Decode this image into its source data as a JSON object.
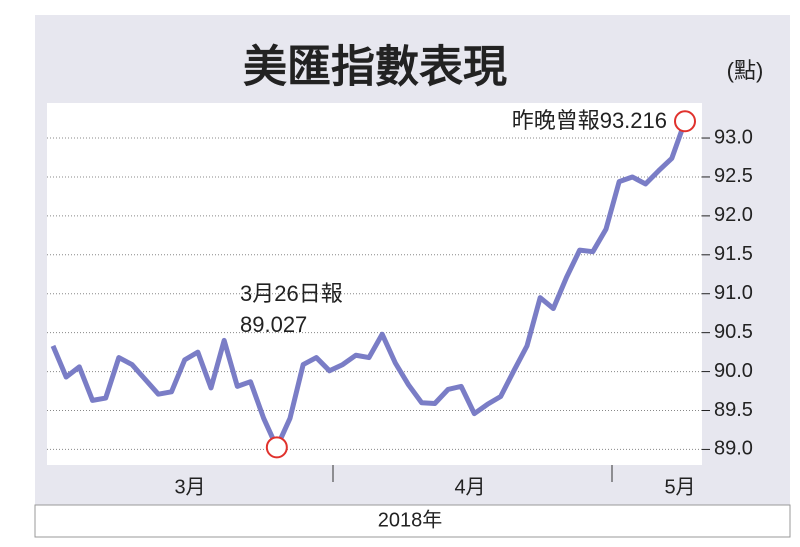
{
  "chart_data": {
    "type": "line",
    "title": "美匯指數表現",
    "unit_label": "(點)",
    "x_label": "2018年",
    "x_group_labels": [
      "3月",
      "4月",
      "5月"
    ],
    "categories": [
      null,
      null,
      null,
      null,
      null,
      null,
      null,
      null,
      null,
      null,
      null,
      null,
      null,
      null,
      null,
      null,
      null,
      null,
      null,
      null,
      null,
      null,
      null,
      null,
      null,
      null,
      null,
      null,
      null,
      null,
      null,
      null,
      null,
      null,
      null,
      null,
      null,
      null,
      null,
      null,
      null,
      null,
      null,
      null,
      null,
      null,
      null,
      null,
      null
    ],
    "series": [
      {
        "name": "美匯指數",
        "color": "#7a7dc6",
        "values": [
          90.33,
          89.93,
          90.06,
          89.63,
          89.66,
          90.18,
          90.09,
          89.9,
          89.71,
          89.74,
          90.15,
          90.25,
          89.79,
          90.4,
          89.81,
          89.87,
          89.4,
          89.027,
          89.4,
          90.09,
          90.18,
          90.01,
          90.09,
          90.21,
          90.18,
          90.48,
          90.11,
          89.83,
          89.6,
          89.59,
          89.77,
          89.81,
          89.46,
          89.58,
          89.68,
          90.01,
          90.33,
          90.95,
          90.81,
          91.21,
          91.56,
          91.54,
          91.83,
          92.44,
          92.5,
          92.41,
          92.58,
          92.74,
          93.216
        ]
      }
    ],
    "annotations": [
      {
        "index": 17,
        "text": "3月26日報"
      },
      {
        "index": 48,
        "text": "昨晚曾報93.216"
      }
    ],
    "ylim": [
      88.8,
      93.45
    ],
    "yticks": [
      {
        "value": 89,
        "label": "89.0"
      },
      {
        "value": 89.5,
        "label": "89.5"
      },
      {
        "value": 90,
        "label": "90.0"
      },
      {
        "value": 90.5,
        "label": "90.5"
      },
      {
        "value": 91,
        "label": "91.0"
      },
      {
        "value": 91.5,
        "label": "91.5"
      },
      {
        "value": 92,
        "label": "92.0"
      },
      {
        "value": 92.5,
        "label": "92.5"
      },
      {
        "value": 93,
        "label": "93.0"
      }
    ],
    "grid": true,
    "marker_color": "#e0322d"
  }
}
